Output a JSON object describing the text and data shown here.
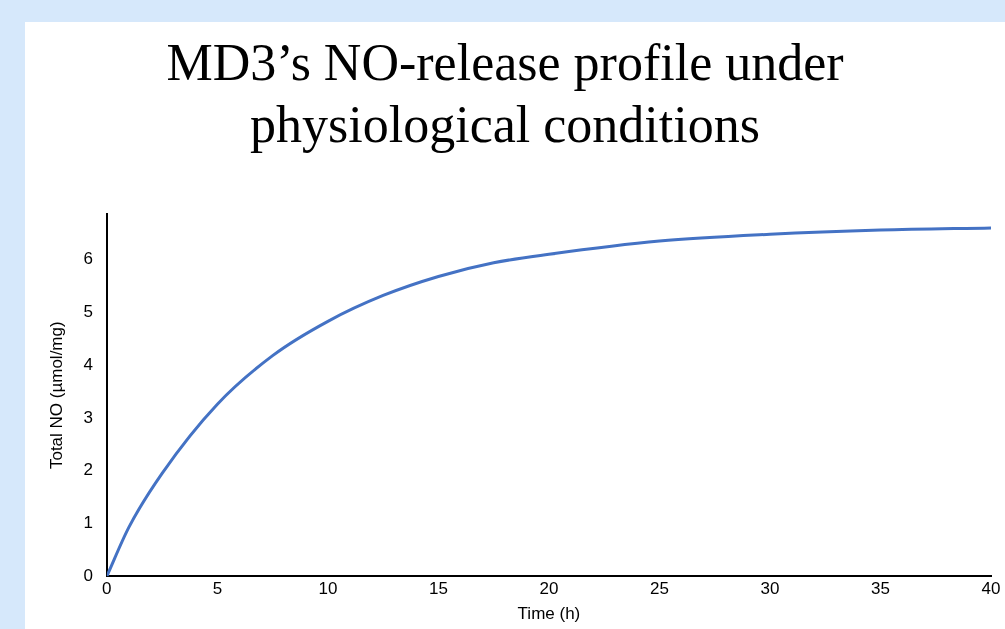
{
  "chart_data": {
    "type": "line",
    "title": "MD3’s NO-release profile under physiological conditions",
    "xlabel": "Time (h)",
    "ylabel": "Total NO (µmol/mg)",
    "x": [
      0,
      1,
      2.5,
      5,
      7.5,
      10,
      12.5,
      15,
      17.5,
      20,
      25,
      30,
      35,
      40
    ],
    "series": [
      {
        "color": "#4472c4",
        "values": [
          0,
          0.93,
          1.95,
          3.26,
          4.18,
          4.83,
          5.32,
          5.68,
          5.94,
          6.1,
          6.35,
          6.48,
          6.56,
          6.6
        ]
      }
    ],
    "xlim": [
      0,
      40
    ],
    "xticks": [
      0,
      5,
      10,
      15,
      20,
      25,
      30,
      35,
      40
    ],
    "ylim": [
      0,
      6.86
    ],
    "yticks": [
      0,
      1,
      2,
      3,
      4,
      5,
      6
    ],
    "grid": false,
    "legend": false,
    "marker": "none",
    "line_style": "solid"
  }
}
